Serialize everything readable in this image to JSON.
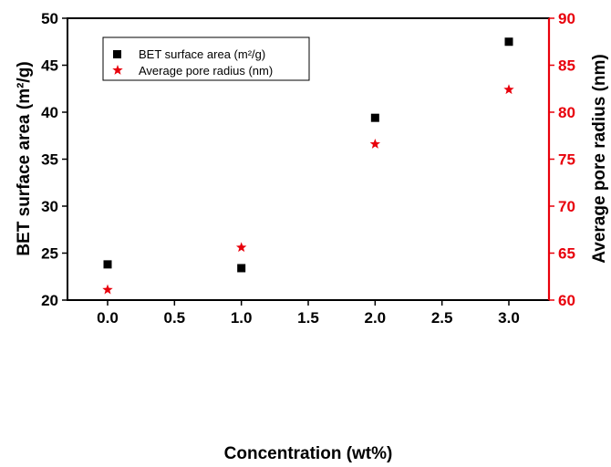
{
  "chart_data": {
    "type": "scatter",
    "xlabel": "Concentration (wt%)",
    "ylabel_left": "BET surface area (m²/g)",
    "ylabel_right": "Average pore radius (nm)",
    "xlim": [
      -0.3,
      3.3
    ],
    "ylim_left": [
      20,
      50
    ],
    "ylim_right": [
      60,
      90
    ],
    "x_ticks": [
      0.0,
      0.5,
      1.0,
      1.5,
      2.0,
      2.5,
      3.0
    ],
    "x_tick_labels": [
      "0.0",
      "0.5",
      "1.0",
      "1.5",
      "2.0",
      "2.5",
      "3.0"
    ],
    "y_left_ticks": [
      20,
      25,
      30,
      35,
      40,
      45,
      50
    ],
    "y_left_tick_labels": [
      "20",
      "25",
      "30",
      "35",
      "40",
      "45",
      "50"
    ],
    "y_right_ticks": [
      60,
      65,
      70,
      75,
      80,
      85,
      90
    ],
    "y_right_tick_labels": [
      "60",
      "65",
      "70",
      "75",
      "80",
      "85",
      "90"
    ],
    "grid": false,
    "legend_position": "top-left",
    "series": [
      {
        "name": "BET surface area (m²/g)",
        "axis": "left",
        "marker": "square",
        "color": "#000000",
        "x": [
          0.0,
          1.0,
          2.0,
          3.0
        ],
        "y": [
          23.8,
          23.4,
          39.4,
          47.5
        ]
      },
      {
        "name": "Average pore radius (nm)",
        "axis": "right",
        "marker": "star",
        "color": "#e8000b",
        "x": [
          0.0,
          1.0,
          2.0,
          3.0
        ],
        "y": [
          61.1,
          65.6,
          76.6,
          82.4
        ]
      }
    ],
    "colors": {
      "left_axis": "#000000",
      "right_axis": "#e8000b"
    }
  }
}
